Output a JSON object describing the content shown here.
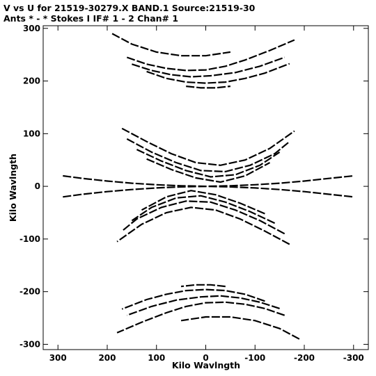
{
  "chart_data": {
    "type": "scatter",
    "title_line1": "V vs U for 21519-30279.X BAND.1   Source:21519-30",
    "title_line2": "Ants * - *    Stokes I  IF# 1 - 2  Chan# 1",
    "xlabel": "Kilo Wavlngth",
    "ylabel": "Kilo Wavlngth",
    "xlim": [
      330,
      -330
    ],
    "ylim": [
      -310,
      305
    ],
    "x_ticks": [
      300,
      200,
      100,
      0,
      -100,
      -200,
      -300
    ],
    "y_ticks": [
      300,
      200,
      100,
      0,
      -100,
      -200,
      -300
    ],
    "x_tick_labels": [
      "300",
      "200",
      "100",
      "0",
      "-100",
      "-200",
      "-300"
    ],
    "y_tick_labels": [
      "300",
      "200",
      "100",
      "0",
      "-100",
      "-200",
      "-300"
    ],
    "grid": false,
    "marker_color": "#000000",
    "series": [
      {
        "tracks": [
          {
            "u": [
              190,
              150,
              100,
              50,
              0,
              -50
            ],
            "v": [
              290,
              270,
              255,
              248,
              248,
              255
            ]
          },
          {
            "u": [
              160,
              120,
              80,
              40,
              0,
              -40,
              -80,
              -130,
              -180
            ],
            "v": [
              245,
              232,
              224,
              220,
              221,
              228,
              240,
              258,
              278
            ]
          },
          {
            "u": [
              150,
              110,
              70,
              30,
              -10,
              -60,
              -110,
              -160
            ],
            "v": [
              232,
              220,
              212,
              208,
              210,
              216,
              228,
              245
            ]
          },
          {
            "u": [
              120,
              80,
              40,
              0,
              -40,
              -80,
              -120,
              -170
            ],
            "v": [
              218,
              205,
              198,
              196,
              198,
              205,
              215,
              233
            ]
          },
          {
            "u": [
              40,
              10,
              -20,
              -50
            ],
            "v": [
              190,
              187,
              187,
              190
            ]
          },
          {
            "u": [
              -190,
              -150,
              -100,
              -50,
              0,
              50
            ],
            "v": [
              -290,
              -270,
              -255,
              -248,
              -248,
              -255
            ]
          },
          {
            "u": [
              -160,
              -120,
              -80,
              -40,
              0,
              40,
              80,
              130,
              180
            ],
            "v": [
              -245,
              -232,
              -224,
              -220,
              -221,
              -228,
              -240,
              -258,
              -278
            ]
          },
          {
            "u": [
              -150,
              -110,
              -70,
              -30,
              10,
              60,
              110,
              160
            ],
            "v": [
              -232,
              -220,
              -212,
              -208,
              -210,
              -216,
              -228,
              -245
            ]
          },
          {
            "u": [
              -120,
              -80,
              -40,
              0,
              40,
              80,
              120,
              170
            ],
            "v": [
              -218,
              -205,
              -198,
              -196,
              -198,
              -205,
              -215,
              -233
            ]
          },
          {
            "u": [
              -40,
              -10,
              20,
              50
            ],
            "v": [
              -190,
              -187,
              -187,
              -190
            ]
          },
          {
            "u": [
              170,
              120,
              70,
              20,
              -30,
              -80,
              -130,
              -180
            ],
            "v": [
              110,
              85,
              62,
              45,
              40,
              50,
              72,
              105
            ]
          },
          {
            "u": [
              160,
              110,
              60,
              10,
              -40,
              -90,
              -140,
              -170
            ],
            "v": [
              90,
              65,
              45,
              30,
              28,
              40,
              62,
              85
            ]
          },
          {
            "u": [
              140,
              90,
              40,
              -10,
              -60,
              -110,
              -150
            ],
            "v": [
              70,
              48,
              30,
              18,
              22,
              40,
              65
            ]
          },
          {
            "u": [
              120,
              70,
              20,
              -30,
              -80,
              -130
            ],
            "v": [
              52,
              32,
              16,
              8,
              20,
              45
            ]
          },
          {
            "u": [
              -170,
              -120,
              -70,
              -20,
              30,
              80,
              130,
              180
            ],
            "v": [
              -110,
              -85,
              -62,
              -45,
              -40,
              -50,
              -72,
              -105
            ]
          },
          {
            "u": [
              -160,
              -110,
              -60,
              -10,
              40,
              90,
              140,
              170
            ],
            "v": [
              -90,
              -65,
              -45,
              -30,
              -28,
              -40,
              -62,
              -85
            ]
          },
          {
            "u": [
              -140,
              -90,
              -40,
              10,
              60,
              110,
              150
            ],
            "v": [
              -70,
              -48,
              -30,
              -18,
              -22,
              -40,
              -65
            ]
          },
          {
            "u": [
              -120,
              -70,
              -20,
              30,
              80,
              130
            ],
            "v": [
              -52,
              -32,
              -16,
              -8,
              -20,
              -45
            ]
          },
          {
            "u": [
              290,
              250,
              200,
              150,
              100,
              50,
              0,
              -50,
              -100,
              -150,
              -200,
              -250,
              -300
            ],
            "v": [
              20,
              15,
              10,
              6,
              3,
              1,
              0,
              -1,
              -3,
              -6,
              -10,
              -15,
              -20
            ]
          },
          {
            "u": [
              290,
              250,
              200,
              150,
              100,
              50,
              0,
              -50,
              -100,
              -150,
              -200,
              -250,
              -300
            ],
            "v": [
              -20,
              -15,
              -10,
              -6,
              -3,
              -1,
              0,
              1,
              3,
              6,
              10,
              15,
              20
            ]
          }
        ]
      }
    ]
  }
}
